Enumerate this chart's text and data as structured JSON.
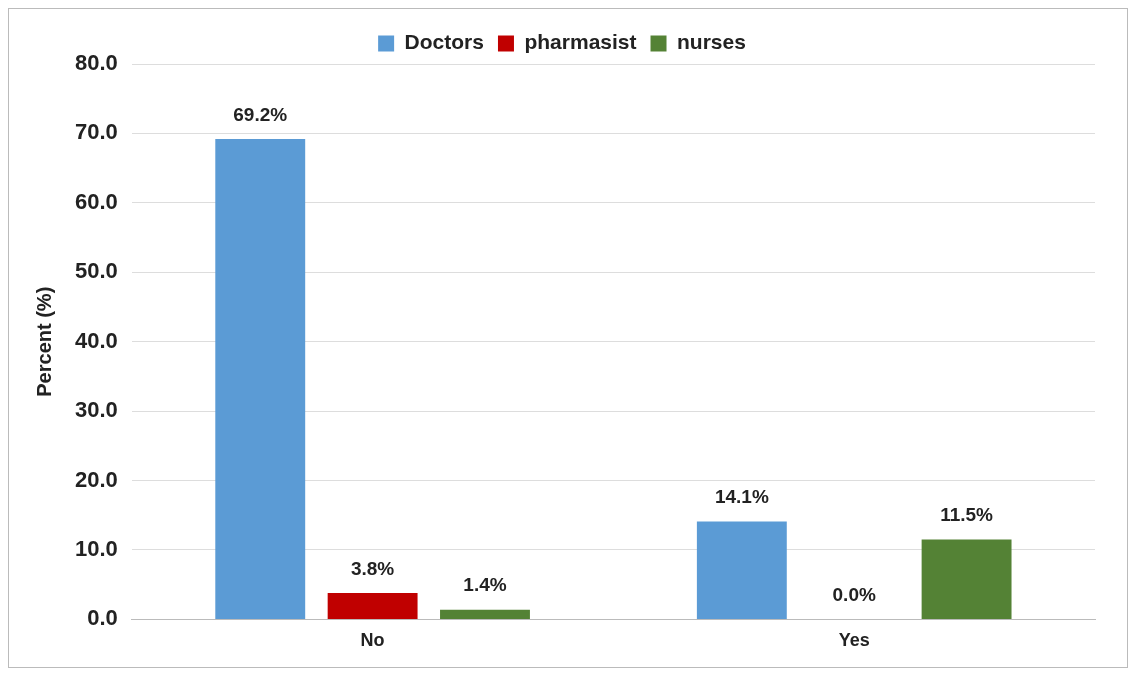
{
  "chart_data": {
    "type": "bar",
    "ylabel": "Percent (%)",
    "categories": [
      "No",
      "Yes"
    ],
    "series": [
      {
        "name": "Doctors",
        "color": "#5b9bd5",
        "values": [
          69.2,
          14.1
        ],
        "value_labels": [
          "69.2%",
          "14.1%"
        ]
      },
      {
        "name": "pharmasist",
        "color": "#c00000",
        "values": [
          3.8,
          0.0
        ],
        "value_labels": [
          "3.8%",
          "0.0%"
        ]
      },
      {
        "name": "nurses",
        "color": "#548235",
        "values": [
          1.4,
          11.5
        ],
        "value_labels": [
          "1.4%",
          "11.5%"
        ]
      }
    ],
    "ylim": [
      0,
      80
    ],
    "yticks": [
      {
        "value": 0,
        "label": "0.0"
      },
      {
        "value": 10,
        "label": "10.0"
      },
      {
        "value": 20,
        "label": "20.0"
      },
      {
        "value": 30,
        "label": "30.0"
      },
      {
        "value": 40,
        "label": "40.0"
      },
      {
        "value": 50,
        "label": "50.0"
      },
      {
        "value": 60,
        "label": "60.0"
      },
      {
        "value": 70,
        "label": "70.0"
      },
      {
        "value": 80,
        "label": "80.0"
      }
    ],
    "grid": "y",
    "legend": "top"
  }
}
